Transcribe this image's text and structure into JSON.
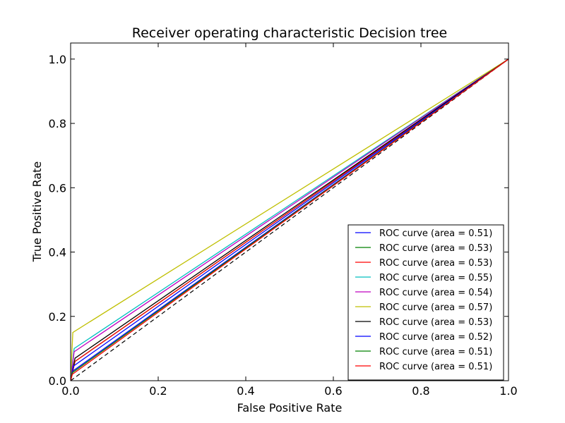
{
  "chart_data": {
    "type": "line",
    "title": "Receiver operating characteristic Decision tree",
    "xlabel": "False Positive Rate",
    "ylabel": "True Positive Rate",
    "xlim": [
      0.0,
      1.0
    ],
    "ylim": [
      0.0,
      1.05
    ],
    "xticks": [
      "0.0",
      "0.2",
      "0.4",
      "0.6",
      "0.8",
      "1.0"
    ],
    "yticks": [
      "0.0",
      "0.2",
      "0.4",
      "0.6",
      "0.8",
      "1.0"
    ],
    "grid": false,
    "legend_position": "lower-right",
    "diagonal": {
      "x": [
        0,
        1
      ],
      "y": [
        0,
        1
      ],
      "color": "#000000",
      "style": "dashed"
    },
    "series": [
      {
        "name": "ROC curve (area = 0.51)",
        "color": "#0000ff",
        "x": [
          0,
          0.005,
          1
        ],
        "y": [
          0,
          0.03,
          1
        ]
      },
      {
        "name": "ROC curve (area = 0.53)",
        "color": "#008000",
        "x": [
          0,
          0.01,
          1
        ],
        "y": [
          0,
          0.06,
          1
        ]
      },
      {
        "name": "ROC curve (area = 0.53)",
        "color": "#ff0000",
        "x": [
          0,
          0.01,
          1
        ],
        "y": [
          0,
          0.06,
          1
        ]
      },
      {
        "name": "ROC curve (area = 0.55)",
        "color": "#00bfbf",
        "x": [
          0,
          0.008,
          1
        ],
        "y": [
          0,
          0.1,
          1
        ]
      },
      {
        "name": "ROC curve (area = 0.54)",
        "color": "#bf00bf",
        "x": [
          0,
          0.008,
          1
        ],
        "y": [
          0,
          0.09,
          1
        ]
      },
      {
        "name": "ROC curve (area = 0.57)",
        "color": "#bfbf00",
        "x": [
          0,
          0.005,
          1
        ],
        "y": [
          0,
          0.15,
          1
        ]
      },
      {
        "name": "ROC curve (area = 0.53)",
        "color": "#000000",
        "x": [
          0,
          0.01,
          1
        ],
        "y": [
          0,
          0.07,
          1
        ]
      },
      {
        "name": "ROC curve (area = 0.52)",
        "color": "#0000ff",
        "x": [
          0,
          0.006,
          1
        ],
        "y": [
          0,
          0.045,
          1
        ]
      },
      {
        "name": "ROC curve (area = 0.51)",
        "color": "#008000",
        "x": [
          0,
          0.004,
          1
        ],
        "y": [
          0,
          0.025,
          1
        ]
      },
      {
        "name": "ROC curve (area = 0.51)",
        "color": "#ff0000",
        "x": [
          0,
          0.004,
          1
        ],
        "y": [
          0,
          0.02,
          1
        ]
      }
    ]
  }
}
